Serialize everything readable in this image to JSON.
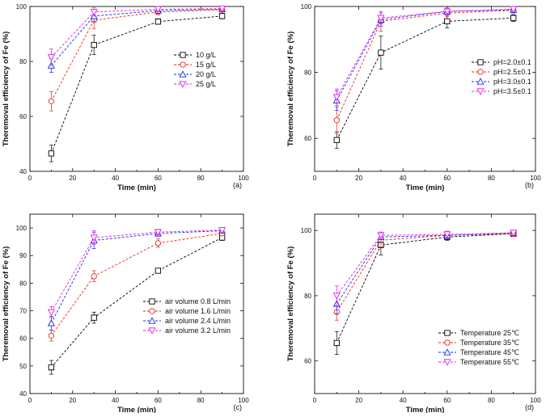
{
  "figure": {
    "panels": [
      {
        "id": "a",
        "legend_position": "right-middle"
      },
      {
        "id": "b",
        "legend_position": "right-middle"
      },
      {
        "id": "c",
        "legend_position": "right-middle"
      },
      {
        "id": "d",
        "legend_position": "bottom-right"
      }
    ]
  },
  "chart_data": [
    {
      "type": "line",
      "panel_label": "(a)",
      "xlabel": "Time (min)",
      "ylabel": "Theremoval efficiency of Fe (%)",
      "xlim": [
        0,
        100
      ],
      "ylim": [
        40,
        100
      ],
      "xticks": [
        0,
        20,
        40,
        60,
        80,
        100
      ],
      "yticks": [
        40,
        60,
        80,
        100
      ],
      "x": [
        10,
        30,
        60,
        90
      ],
      "grid": false,
      "legend_position": "right-middle",
      "series": [
        {
          "name": "10 g/L",
          "marker": "square",
          "color": "#000000",
          "values": [
            46.5,
            86.0,
            94.5,
            96.5
          ],
          "errors": [
            3.0,
            3.5,
            1.0,
            1.0
          ]
        },
        {
          "name": "15 g/L",
          "marker": "circle",
          "color": "#e8271a",
          "values": [
            65.5,
            95.0,
            98.0,
            98.8
          ],
          "errors": [
            3.5,
            3.0,
            1.0,
            0.8
          ]
        },
        {
          "name": "20 g/L",
          "marker": "triangle-up",
          "color": "#1a27e8",
          "values": [
            78.5,
            96.5,
            98.5,
            99.0
          ],
          "errors": [
            2.5,
            2.0,
            1.0,
            0.8
          ]
        },
        {
          "name": "25 g/L",
          "marker": "triangle-down",
          "color": "#e81ae8",
          "values": [
            81.5,
            98.0,
            99.0,
            99.2
          ],
          "errors": [
            3.0,
            1.5,
            1.0,
            0.8
          ]
        }
      ]
    },
    {
      "type": "line",
      "panel_label": "(b)",
      "xlabel": "Time (min)",
      "ylabel": "Theremoval efficiency of Fe (%)",
      "xlim": [
        0,
        100
      ],
      "ylim": [
        50,
        100
      ],
      "xticks": [
        0,
        20,
        40,
        60,
        80,
        100
      ],
      "yticks": [
        60,
        80,
        100
      ],
      "x": [
        10,
        30,
        60,
        90
      ],
      "grid": false,
      "legend_position": "right-middle",
      "series": [
        {
          "name": "pH=2.0±0.1",
          "marker": "square",
          "color": "#000000",
          "values": [
            59.5,
            86.0,
            95.5,
            96.5
          ],
          "errors": [
            2.5,
            5.0,
            2.0,
            1.0
          ]
        },
        {
          "name": "pH=2.5±0.1",
          "marker": "circle",
          "color": "#e8271a",
          "values": [
            65.5,
            95.5,
            98.0,
            98.8
          ],
          "errors": [
            4.0,
            3.0,
            1.0,
            0.8
          ]
        },
        {
          "name": "pH=3.0±0.1",
          "marker": "triangle-up",
          "color": "#1a27e8",
          "values": [
            71.5,
            96.0,
            98.5,
            99.0
          ],
          "errors": [
            3.0,
            2.0,
            1.0,
            0.8
          ]
        },
        {
          "name": "pH=3.5±0.1",
          "marker": "triangle-down",
          "color": "#e81ae8",
          "values": [
            72.5,
            96.5,
            98.5,
            99.2
          ],
          "errors": [
            2.5,
            1.5,
            1.0,
            0.8
          ]
        }
      ]
    },
    {
      "type": "line",
      "panel_label": "(c)",
      "xlabel": "Time (min)",
      "ylabel": "Theremoval efficiency of Fe (%)",
      "xlim": [
        0,
        100
      ],
      "ylim": [
        40,
        105
      ],
      "xticks": [
        0,
        20,
        40,
        60,
        80,
        100
      ],
      "yticks": [
        40,
        50,
        60,
        70,
        80,
        90,
        100
      ],
      "x": [
        10,
        30,
        60,
        90
      ],
      "grid": false,
      "legend_position": "right-middle",
      "series": [
        {
          "name": "air volume 0.8 L/min",
          "marker": "square",
          "color": "#000000",
          "values": [
            49.5,
            67.5,
            84.5,
            96.5
          ],
          "errors": [
            2.5,
            2.0,
            0.5,
            1.0
          ]
        },
        {
          "name": "air volume 1.6 L/min",
          "marker": "circle",
          "color": "#e8271a",
          "values": [
            61.0,
            82.5,
            94.5,
            98.0
          ],
          "errors": [
            2.0,
            2.0,
            1.5,
            0.8
          ]
        },
        {
          "name": "air volume 2.4 L/min",
          "marker": "triangle-up",
          "color": "#1a27e8",
          "values": [
            65.5,
            95.5,
            98.0,
            99.0
          ],
          "errors": [
            2.5,
            3.0,
            1.0,
            0.8
          ]
        },
        {
          "name": "air volume 3.2 L/min",
          "marker": "triangle-down",
          "color": "#e81ae8",
          "values": [
            69.5,
            96.5,
            98.5,
            99.2
          ],
          "errors": [
            2.0,
            2.5,
            1.0,
            0.8
          ]
        }
      ]
    },
    {
      "type": "line",
      "panel_label": "(d)",
      "xlabel": "Time (min)",
      "ylabel": "Theremoval efficiency of Fe (%)",
      "xlim": [
        0,
        100
      ],
      "ylim": [
        50,
        105
      ],
      "xticks": [
        0,
        20,
        40,
        60,
        80,
        100
      ],
      "yticks": [
        60,
        80,
        100
      ],
      "x": [
        10,
        30,
        60,
        90
      ],
      "grid": false,
      "legend_position": "bottom-right",
      "series": [
        {
          "name": "Temperature 25℃",
          "marker": "square",
          "color": "#000000",
          "values": [
            65.5,
            95.5,
            98.0,
            99.0
          ],
          "errors": [
            3.5,
            3.0,
            1.0,
            0.8
          ]
        },
        {
          "name": "Temperature 35℃",
          "marker": "circle",
          "color": "#e8271a",
          "values": [
            75.0,
            97.0,
            98.5,
            99.0
          ],
          "errors": [
            2.5,
            2.0,
            1.0,
            0.8
          ]
        },
        {
          "name": "Temperature 45℃",
          "marker": "triangle-up",
          "color": "#1a27e8",
          "values": [
            77.5,
            98.0,
            98.5,
            99.2
          ],
          "errors": [
            3.0,
            1.5,
            1.0,
            0.8
          ]
        },
        {
          "name": "Temperature 55℃",
          "marker": "triangle-down",
          "color": "#e81ae8",
          "values": [
            80.0,
            98.5,
            98.8,
            99.3
          ],
          "errors": [
            3.0,
            1.0,
            1.0,
            0.8
          ]
        }
      ]
    }
  ]
}
